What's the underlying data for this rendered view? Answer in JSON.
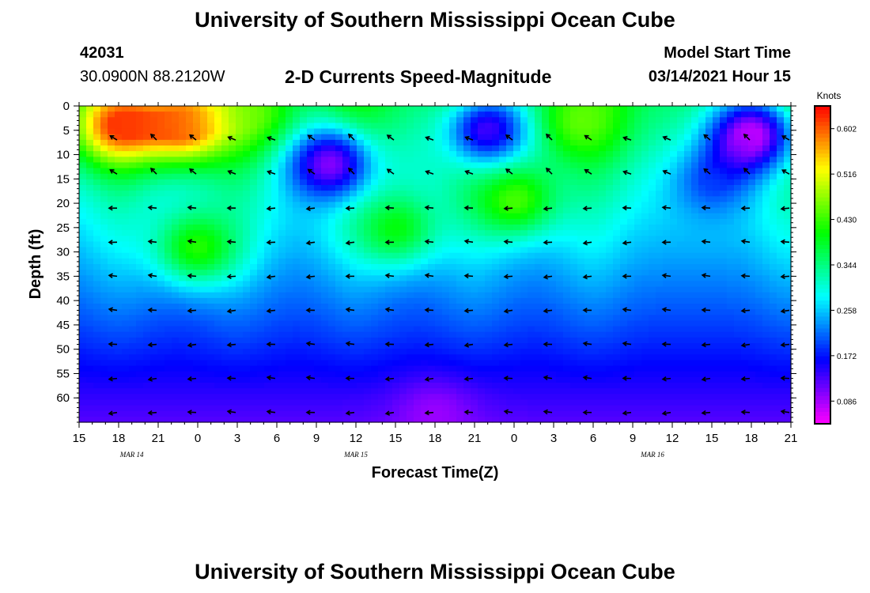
{
  "header": {
    "title": "University of Southern Mississippi Ocean Cube",
    "station_id": "42031",
    "station_coords": "30.0900N 88.2120W",
    "plot_title": "2-D Currents Speed-Magnitude",
    "model_start_label": "Model Start Time",
    "model_start_time": "03/14/2021 Hour 15"
  },
  "footer": {
    "title": "University of Southern Mississippi Ocean Cube"
  },
  "chart_data": {
    "type": "heatmap",
    "title": "2-D Currents Speed-Magnitude",
    "xlabel": "Forecast Time(Z)",
    "ylabel": "Depth (ft)",
    "x_range_hours": [
      0,
      54
    ],
    "y_range": [
      0,
      65
    ],
    "x_ticks": [
      {
        "hour": 0,
        "label": "15"
      },
      {
        "hour": 3,
        "label": "18"
      },
      {
        "hour": 6,
        "label": "21"
      },
      {
        "hour": 9,
        "label": "0"
      },
      {
        "hour": 12,
        "label": "3"
      },
      {
        "hour": 15,
        "label": "6"
      },
      {
        "hour": 18,
        "label": "9"
      },
      {
        "hour": 21,
        "label": "12"
      },
      {
        "hour": 24,
        "label": "15"
      },
      {
        "hour": 27,
        "label": "18"
      },
      {
        "hour": 30,
        "label": "21"
      },
      {
        "hour": 33,
        "label": "0"
      },
      {
        "hour": 36,
        "label": "3"
      },
      {
        "hour": 39,
        "label": "6"
      },
      {
        "hour": 42,
        "label": "9"
      },
      {
        "hour": 45,
        "label": "12"
      },
      {
        "hour": 48,
        "label": "15"
      },
      {
        "hour": 51,
        "label": "18"
      },
      {
        "hour": 54,
        "label": "21"
      }
    ],
    "date_labels": [
      {
        "hour": 4,
        "label": "MAR 14"
      },
      {
        "hour": 21,
        "label": "MAR 15"
      },
      {
        "hour": 43.5,
        "label": "MAR 16"
      }
    ],
    "y_ticks": [
      0,
      5,
      10,
      15,
      20,
      25,
      30,
      35,
      40,
      45,
      50,
      55,
      60
    ],
    "colorbar": {
      "unit": "Knots",
      "range": [
        0.043,
        0.645
      ],
      "ticks": [
        "0.086",
        "0.172",
        "0.258",
        "0.344",
        "0.430",
        "0.516",
        "0.602"
      ]
    },
    "speed_features": [
      {
        "kind": "high",
        "hour": 3,
        "depth": 4,
        "value": 0.62
      },
      {
        "kind": "high",
        "hour": 8,
        "depth": 4,
        "value": 0.6
      },
      {
        "kind": "high",
        "hour": 13,
        "depth": 2,
        "value": 0.45
      },
      {
        "kind": "high",
        "hour": 9,
        "depth": 29,
        "value": 0.42
      },
      {
        "kind": "high",
        "hour": 33,
        "depth": 19,
        "value": 0.44
      },
      {
        "kind": "high",
        "hour": 38,
        "depth": 3,
        "value": 0.45
      },
      {
        "kind": "high",
        "hour": 24,
        "depth": 25,
        "value": 0.4
      },
      {
        "kind": "low",
        "hour": 19,
        "depth": 12,
        "value": 0.1
      },
      {
        "kind": "low",
        "hour": 31,
        "depth": 5,
        "value": 0.13
      },
      {
        "kind": "low",
        "hour": 51,
        "depth": 6,
        "value": 0.07
      },
      {
        "kind": "low",
        "hour": 48,
        "depth": 16,
        "value": 0.2
      },
      {
        "kind": "low",
        "hour": 27,
        "depth": 64,
        "value": 0.09
      }
    ],
    "vector_columns_hours": [
      3,
      6,
      9,
      12,
      15,
      18,
      21,
      24,
      27,
      30,
      33,
      36,
      39,
      42,
      45,
      48,
      51,
      54
    ],
    "vector_rows_depth": [
      7,
      14,
      21,
      28,
      35,
      42,
      49,
      56,
      63
    ],
    "vector_direction": "mostly westward, tilting northwest near surface"
  }
}
